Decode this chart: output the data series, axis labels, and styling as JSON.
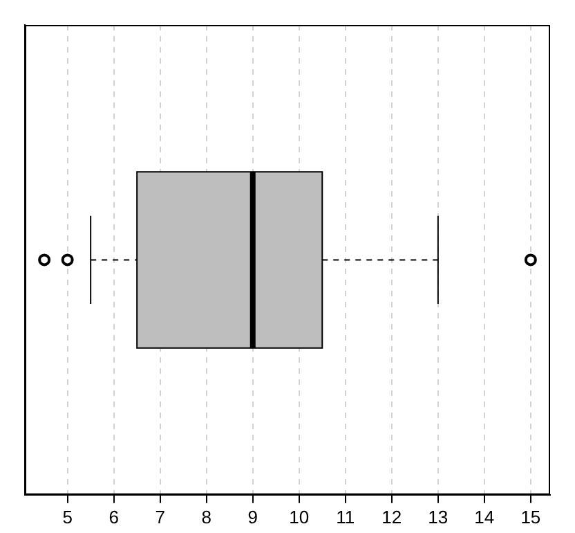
{
  "chart_data": {
    "type": "box",
    "orientation": "horizontal",
    "categories": [
      null
    ],
    "boxes": [
      {
        "low": 5.5,
        "q1": 6.5,
        "median": 9,
        "q3": 10.5,
        "high": 13,
        "outliers": [
          4.5,
          5,
          15
        ]
      }
    ],
    "color": "#bebebe",
    "xlim": [
      4.08,
      15.42
    ],
    "xticks": [
      5,
      6,
      7,
      8,
      9,
      10,
      11,
      12,
      13,
      14,
      15
    ],
    "grid": "x",
    "tick_labels": "x",
    "legend": false
  }
}
